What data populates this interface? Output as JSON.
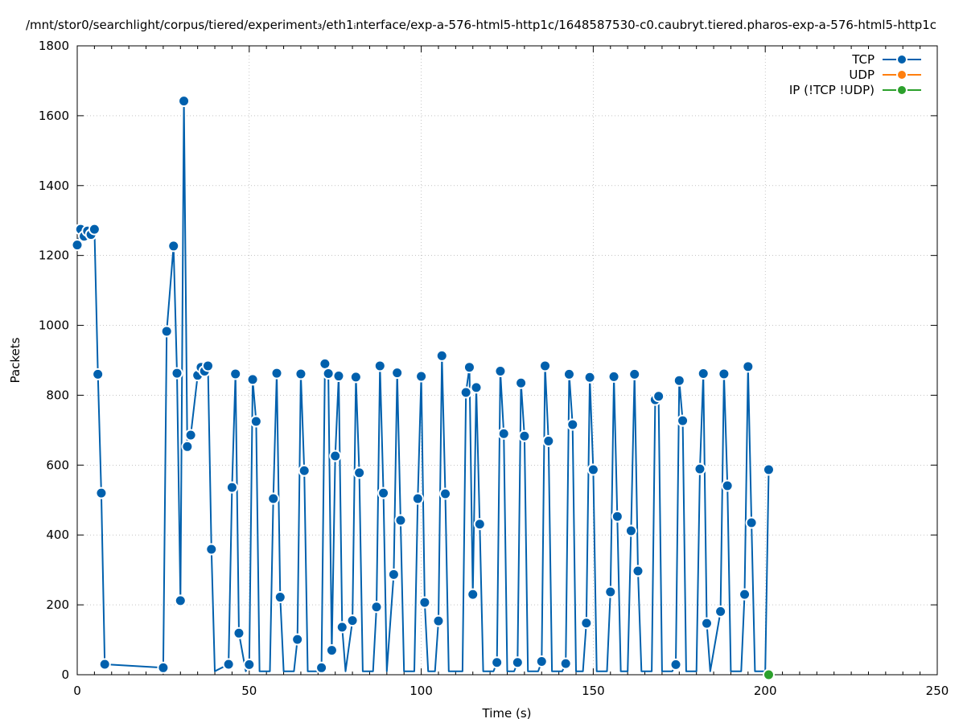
{
  "chart_data": {
    "type": "line",
    "title": "/mnt/stor0/searchlight/corpus/tiered/experiment₃/eth1ᵢnterface/exp-a-576-html5-http1c/1648587530-c0.caubryt.tiered.pharos-exp-a-576-html5-http1c",
    "xlabel": "Time (s)",
    "ylabel": "Packets",
    "xlim": [
      0,
      250
    ],
    "ylim": [
      0,
      1800
    ],
    "xticks": [
      0,
      50,
      100,
      150,
      200,
      250
    ],
    "yticks": [
      0,
      200,
      400,
      600,
      800,
      1000,
      1200,
      1400,
      1600,
      1800
    ],
    "grid": true,
    "legend_position": "top-right",
    "series": [
      {
        "name": "TCP",
        "color": "#0060ad",
        "points": [
          [
            0,
            1230
          ],
          [
            1,
            1275
          ],
          [
            2,
            1255
          ],
          [
            3,
            1270
          ],
          [
            4,
            1260
          ],
          [
            5,
            1275
          ],
          [
            6,
            860
          ],
          [
            7,
            520
          ],
          [
            8,
            30
          ],
          [
            25,
            20
          ],
          [
            26,
            983
          ],
          [
            28,
            1227
          ],
          [
            29,
            863
          ],
          [
            30,
            212
          ],
          [
            31,
            1642
          ],
          [
            32,
            653
          ],
          [
            33,
            686
          ],
          [
            35,
            857
          ],
          [
            36,
            880
          ],
          [
            37,
            869
          ],
          [
            38,
            884
          ],
          [
            39,
            359
          ],
          [
            40,
            10
          ],
          [
            44,
            30
          ],
          [
            45,
            536
          ],
          [
            46,
            861
          ],
          [
            47,
            119
          ],
          [
            49,
            10
          ],
          [
            50,
            29
          ],
          [
            51,
            845
          ],
          [
            52,
            725
          ],
          [
            53,
            10
          ],
          [
            56,
            10
          ],
          [
            57,
            504
          ],
          [
            58,
            863
          ],
          [
            59,
            222
          ],
          [
            60,
            10
          ],
          [
            63,
            10
          ],
          [
            64,
            101
          ],
          [
            65,
            861
          ],
          [
            66,
            584
          ],
          [
            67,
            10
          ],
          [
            70,
            10
          ],
          [
            71,
            20
          ],
          [
            72,
            890
          ],
          [
            73,
            862
          ],
          [
            74,
            70
          ],
          [
            75,
            626
          ],
          [
            76,
            855
          ],
          [
            77,
            136
          ],
          [
            78,
            10
          ],
          [
            80,
            155
          ],
          [
            81,
            852
          ],
          [
            82,
            578
          ],
          [
            83,
            10
          ],
          [
            86,
            10
          ],
          [
            87,
            194
          ],
          [
            88,
            884
          ],
          [
            89,
            520
          ],
          [
            90,
            10
          ],
          [
            92,
            287
          ],
          [
            93,
            864
          ],
          [
            94,
            442
          ],
          [
            95,
            10
          ],
          [
            98,
            10
          ],
          [
            99,
            504
          ],
          [
            100,
            854
          ],
          [
            101,
            207
          ],
          [
            102,
            10
          ],
          [
            104,
            10
          ],
          [
            105,
            154
          ],
          [
            106,
            913
          ],
          [
            107,
            518
          ],
          [
            108,
            10
          ],
          [
            112,
            10
          ],
          [
            113,
            808
          ],
          [
            114,
            880
          ],
          [
            115,
            230
          ],
          [
            116,
            822
          ],
          [
            117,
            431
          ],
          [
            118,
            10
          ],
          [
            121,
            10
          ],
          [
            122,
            35
          ],
          [
            123,
            869
          ],
          [
            124,
            690
          ],
          [
            125,
            10
          ],
          [
            127,
            10
          ],
          [
            128,
            35
          ],
          [
            129,
            835
          ],
          [
            130,
            683
          ],
          [
            131,
            10
          ],
          [
            134,
            10
          ],
          [
            135,
            38
          ],
          [
            136,
            884
          ],
          [
            137,
            669
          ],
          [
            138,
            10
          ],
          [
            141,
            10
          ],
          [
            142,
            32
          ],
          [
            143,
            860
          ],
          [
            144,
            716
          ],
          [
            145,
            10
          ],
          [
            147,
            10
          ],
          [
            148,
            148
          ],
          [
            149,
            851
          ],
          [
            150,
            587
          ],
          [
            151,
            10
          ],
          [
            154,
            10
          ],
          [
            155,
            237
          ],
          [
            156,
            853
          ],
          [
            157,
            453
          ],
          [
            158,
            10
          ],
          [
            160,
            10
          ],
          [
            161,
            412
          ],
          [
            162,
            860
          ],
          [
            163,
            297
          ],
          [
            164,
            10
          ],
          [
            167,
            10
          ],
          [
            168,
            787
          ],
          [
            169,
            797
          ],
          [
            170,
            10
          ],
          [
            173,
            10
          ],
          [
            174,
            29
          ],
          [
            175,
            842
          ],
          [
            176,
            727
          ],
          [
            177,
            10
          ],
          [
            180,
            10
          ],
          [
            181,
            589
          ],
          [
            182,
            862
          ],
          [
            183,
            147
          ],
          [
            184,
            10
          ],
          [
            187,
            181
          ],
          [
            188,
            861
          ],
          [
            189,
            541
          ],
          [
            190,
            10
          ],
          [
            193,
            10
          ],
          [
            194,
            230
          ],
          [
            195,
            882
          ],
          [
            196,
            435
          ],
          [
            197,
            10
          ],
          [
            200,
            10
          ],
          [
            201,
            587
          ]
        ]
      },
      {
        "name": "UDP",
        "color": "#ff7f0e",
        "points": []
      },
      {
        "name": "IP (!TCP  !UDP)",
        "color": "#2ca02c",
        "points": [
          [
            201,
            0
          ]
        ]
      }
    ]
  }
}
